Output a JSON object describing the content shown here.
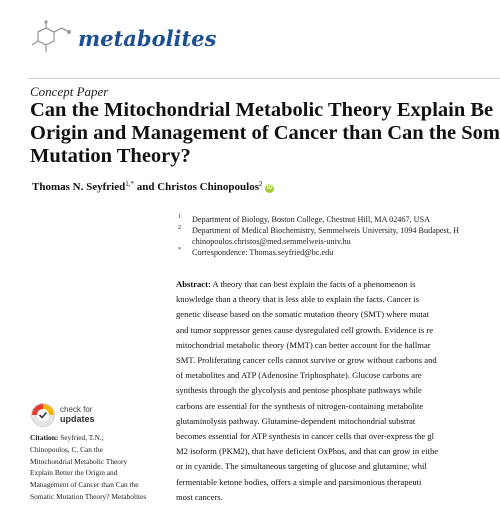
{
  "journal": {
    "name": "metabolites",
    "logo_icon": "metabolites-molecule-logo-icon",
    "brand_color": "#1d4f91"
  },
  "article": {
    "type": "Concept Paper",
    "title_lines": [
      "Can the Mitochondrial Metabolic Theory Explain Be",
      "Origin and Management of Cancer than Can the Som",
      "Mutation Theory?"
    ],
    "authors": {
      "author1": "Thomas N. Seyfried",
      "author1_sup": "1,*",
      "and": " and ",
      "author2": "Christos Chinopoulos",
      "author2_sup": "2",
      "orcid_icon": "orcid-icon"
    },
    "affiliations": [
      {
        "num": "1",
        "text": "Department of Biology, Boston College, Chestnut Hill, MA 02467, USA"
      },
      {
        "num": "2",
        "text": "Department of Medical Biochemistry, Semmelweis University, 1094 Budapest, H"
      },
      {
        "num": "",
        "text": "chinopoulos.christos@med.semmelweis-univ.hu"
      },
      {
        "num": "*",
        "text": "Correspondence: Thomas.seyfried@bc.edu"
      }
    ],
    "abstract_label": "Abstract:",
    "abstract_lines": [
      " A theory that can best explain the facts of a phenomenon is",
      "knowledge than a theory that is less able to explain the facts.  Cancer is",
      "genetic disease based on the somatic mutation theory (SMT) where mutat",
      "and tumor suppressor genes cause dysregulated cell growth. Evidence is re",
      "mitochondrial metabolic theory (MMT) can better account for the hallmar",
      "SMT. Proliferating cancer cells cannot survive or grow without carbons and",
      "of metabolites and ATP (Adenosine Triphosphate).  Glucose carbons are",
      "synthesis through the glycolysis and pentose phosphate pathways while",
      "carbons are essential for the synthesis of nitrogen-containing metabolite",
      "glutaminolysis pathway.  Glutamine-dependent mitochondrial substrat",
      "becomes essential for ATP synthesis in cancer cells that over-express the gl",
      "M2 isoform (PKM2), that have deficient OxPhos, and that can grow in eithe",
      "or in cyanide. The simultaneous targeting of glucose and glutamine, whil",
      "fermentable ketone bodies, offers a simple and parsimonious therapeuti",
      "most cancers."
    ]
  },
  "check_updates": {
    "line1": "check for",
    "line2": "updates",
    "icon": "check-for-updates-badge-icon"
  },
  "citation": {
    "label": "Citation:",
    "lines": [
      " Seyfried, T.N.;",
      "Chinopoulos, C. Can the",
      "Mitochondrial Metabolic Theory",
      "Explain Better the Origin and",
      "Management of Cancer than Can the",
      "Somatic Mutation Theory? Metabolites"
    ]
  }
}
